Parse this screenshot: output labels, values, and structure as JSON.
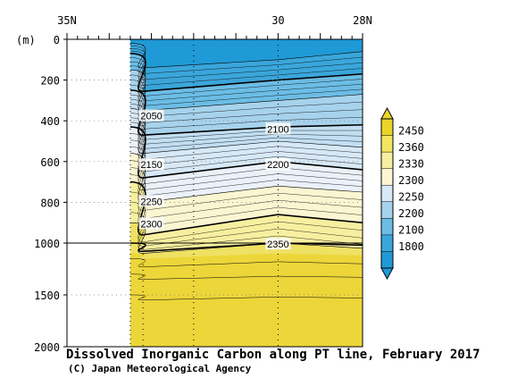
{
  "chart_data": {
    "type": "heatmap",
    "title": "Dissolved Inorganic Carbon along PT line, February 2017",
    "credit": "(C) Japan Meteorological Agency",
    "x_axis": {
      "tick_labels": [
        {
          "label": "35N",
          "lat": 35
        },
        {
          "label": "30",
          "lat": 30
        },
        {
          "label": "28N",
          "lat": 28
        }
      ],
      "range": [
        35,
        28
      ]
    },
    "y_axis": {
      "unit_label": "(m)",
      "tick_labels": [
        "0",
        "200",
        "400",
        "600",
        "800",
        "1000",
        "1500",
        "2000"
      ],
      "tick_values": [
        0,
        200,
        400,
        600,
        800,
        1000,
        1500,
        2000
      ],
      "range": [
        0,
        2000
      ],
      "scale": "piecewise linear: 0-1000 m expanded, 1000-2000 m compressed"
    },
    "colorbar": {
      "levels": [
        "2450",
        "2360",
        "2330",
        "2300",
        "2250",
        "2200",
        "2100",
        "1800"
      ],
      "colors": [
        "#e9d52a",
        "#f2e661",
        "#f7efa0",
        "#fbf6d1",
        "#d7e8f6",
        "#a7d2ec",
        "#6cbde6",
        "#3aa6db",
        "#1f9ad6"
      ]
    },
    "contour_labels": [
      {
        "text": "2050",
        "lat": 33.0,
        "depth": 375
      },
      {
        "text": "2100",
        "lat": 30.0,
        "depth": 440
      },
      {
        "text": "2150",
        "lat": 33.0,
        "depth": 615
      },
      {
        "text": "2200",
        "lat": 30.0,
        "depth": 615
      },
      {
        "text": "2250",
        "lat": 33.0,
        "depth": 795
      },
      {
        "text": "2300",
        "lat": 33.0,
        "depth": 905
      },
      {
        "text": "2350",
        "lat": 30.0,
        "depth": 1010
      }
    ],
    "stations_lat": [
      33.2,
      32.0,
      30.0
    ],
    "no_data_lat_range": [
      35,
      33.5
    ],
    "grid": true
  }
}
